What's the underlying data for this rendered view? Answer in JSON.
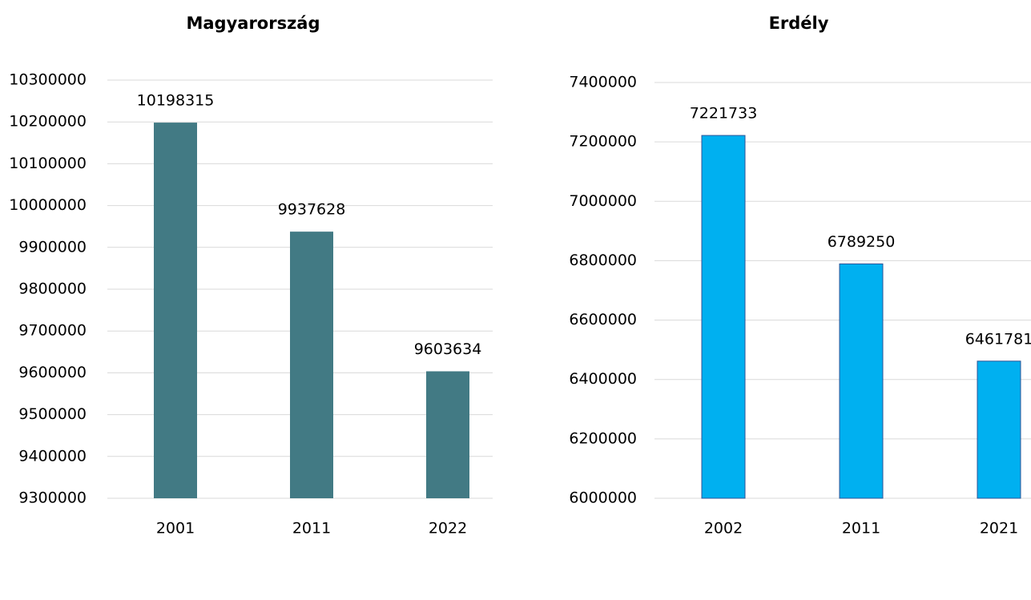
{
  "chart_data": [
    {
      "type": "bar",
      "title": "Magyarország",
      "categories": [
        "2001",
        "2011",
        "2022"
      ],
      "values": [
        10198315,
        9937628,
        9603634
      ],
      "color": "#427a84",
      "ylim": [
        9300000,
        10300000
      ],
      "yticks": [
        9300000,
        9400000,
        9500000,
        9600000,
        9700000,
        9800000,
        9900000,
        10000000,
        10100000,
        10200000,
        10300000
      ],
      "grid": true
    },
    {
      "type": "bar",
      "title": "Erdély",
      "categories": [
        "2002",
        "2011",
        "2021"
      ],
      "values": [
        7221733,
        6789250,
        6461781
      ],
      "color": "#00b0f0",
      "edge_color": "#2f5597",
      "ylim": [
        6000000,
        7400000
      ],
      "yticks": [
        6000000,
        6200000,
        6400000,
        6600000,
        6800000,
        7000000,
        7200000,
        7400000
      ],
      "grid": true
    }
  ]
}
